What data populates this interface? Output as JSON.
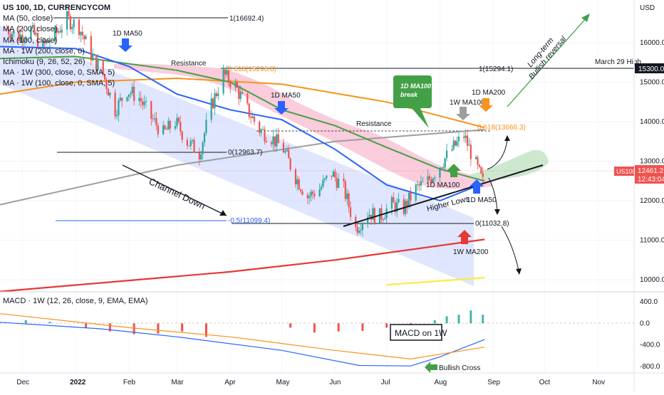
{
  "header": {
    "symbol": "US 100, 1D, CURRENCYCOM",
    "indicators": [
      "MA (50, close)",
      "MA (200, close)",
      "MA (100, close)",
      "MA · 1W (200, close, 0)",
      "Ichimoku (9, 26, 52, 26)",
      "MA · 1W (300, close, 0, SMA, 5)",
      "MA · 1W (100, close, 0, SMA, 5)"
    ],
    "macd_label": "MACD · 1W (12, 26, close, 9, EMA, EMA)"
  },
  "price_axis": {
    "unit": "USD",
    "ticks": [
      16000,
      15000,
      14000,
      13000,
      12000,
      11000,
      10000
    ],
    "tick_labels": [
      "16000.0",
      "15000.0",
      "14000.0",
      "13000.0",
      "12000.0",
      "11000.0",
      "10000.0"
    ],
    "tag_15300": "15300.0",
    "current_symbol": "US100",
    "current_price": "12461.2",
    "countdown": "12:43:04"
  },
  "macd_axis": {
    "ticks": [
      400,
      0,
      -400,
      -800
    ],
    "tick_labels": [
      "400.0",
      "0.0",
      "-400.0",
      "-800.0"
    ]
  },
  "time_axis": [
    "Dec",
    "2022",
    "Feb",
    "Mar",
    "Apr",
    "May",
    "Jun",
    "Jul",
    "Aug",
    "Sep",
    "Oct",
    "Nov"
  ],
  "annotations": {
    "fib_1": "1(16692.4)",
    "fib_0618_top": "0.618(15296.8)",
    "fib_1_right": "1(15294.1)",
    "march_high": "March 29 High",
    "fib_0_left": "0(12963.7)",
    "fib_neg05": "-0.5(11099.4)",
    "fib_0_right": "0(11032.8)",
    "fib_0618_right": "0.618(13666.3)",
    "resistance_1": "Resistance",
    "resistance_2": "Resistance",
    "ma50_1": "1D MA50",
    "ma50_2": "1D MA50",
    "ma50_3": "1D MA50",
    "ma100_1w": "1W MA100",
    "ma200_1d": "1D MA200",
    "ma100_1d": "1D MA100",
    "ma200_1w": "1W MA200",
    "ma100_break_1": "1D MA100",
    "ma100_break_2": "break",
    "channel": "Channel Down",
    "higher_lows": "Higher Lows",
    "reversal_1": "Long-term",
    "reversal_2": "Bullish reversal",
    "macd_box": "MACD on 1W",
    "bullish_cross": "Bullish Cross"
  },
  "colors": {
    "ma50": "#2962ff",
    "ma100": "#43a047",
    "ma200": "#f7931a",
    "ma200_1w": "#e53935",
    "ma300_1w": "#9e9e9e",
    "up": "#26a69a",
    "down": "#ef5350",
    "channel": "#c7d2fe",
    "cloud_bear": "#f8bbd0",
    "cloud_bull": "#c8e6c9",
    "fib_orange": "#f7931a"
  },
  "chart_data": {
    "type": "candlestick",
    "x_range": [
      "2021-11-18",
      "2022-11-22"
    ],
    "y_range": [
      9500,
      17000
    ],
    "price_path": [
      [
        "2021-11-22",
        16350
      ],
      [
        "2021-11-29",
        16150
      ],
      [
        "2021-12-06",
        16300
      ],
      [
        "2021-12-13",
        15900
      ],
      [
        "2021-12-20",
        16200
      ],
      [
        "2021-12-27",
        16600
      ],
      [
        "2022-01-03",
        16400
      ],
      [
        "2022-01-10",
        15700
      ],
      [
        "2022-01-17",
        15200
      ],
      [
        "2022-01-24",
        14300
      ],
      [
        "2022-01-31",
        14800
      ],
      [
        "2022-02-07",
        14600
      ],
      [
        "2022-02-14",
        14100
      ],
      [
        "2022-02-21",
        13700
      ],
      [
        "2022-02-28",
        14000
      ],
      [
        "2022-03-07",
        13500
      ],
      [
        "2022-03-14",
        13200
      ],
      [
        "2022-03-21",
        14400
      ],
      [
        "2022-03-28",
        15200
      ],
      [
        "2022-04-04",
        14900
      ],
      [
        "2022-04-11",
        14300
      ],
      [
        "2022-04-18",
        13800
      ],
      [
        "2022-04-25",
        13600
      ],
      [
        "2022-05-02",
        13300
      ],
      [
        "2022-05-09",
        12600
      ],
      [
        "2022-05-16",
        12100
      ],
      [
        "2022-05-23",
        12300
      ],
      [
        "2022-05-30",
        12700
      ],
      [
        "2022-06-06",
        12300
      ],
      [
        "2022-06-13",
        11300
      ],
      [
        "2022-06-20",
        11700
      ],
      [
        "2022-06-27",
        11600
      ],
      [
        "2022-07-04",
        11900
      ],
      [
        "2022-07-11",
        11800
      ],
      [
        "2022-07-18",
        12300
      ],
      [
        "2022-07-25",
        12500
      ],
      [
        "2022-08-01",
        12900
      ],
      [
        "2022-08-08",
        13300
      ],
      [
        "2022-08-15",
        13650
      ],
      [
        "2022-08-22",
        12900
      ],
      [
        "2022-08-26",
        12461
      ]
    ],
    "moving_averages": {
      "ma50_1d": [
        [
          "2021-11-18",
          15900
        ],
        [
          "2022-01-01",
          15850
        ],
        [
          "2022-02-01",
          15400
        ],
        [
          "2022-03-01",
          14700
        ],
        [
          "2022-04-01",
          14300
        ],
        [
          "2022-05-01",
          14050
        ],
        [
          "2022-06-01",
          13300
        ],
        [
          "2022-07-01",
          12400
        ],
        [
          "2022-08-01",
          12000
        ],
        [
          "2022-08-27",
          12450
        ]
      ],
      "ma100_1d": [
        [
          "2021-11-18",
          15600
        ],
        [
          "2022-01-01",
          15650
        ],
        [
          "2022-03-01",
          15300
        ],
        [
          "2022-04-01",
          15000
        ],
        [
          "2022-05-01",
          14300
        ],
        [
          "2022-06-01",
          13900
        ],
        [
          "2022-07-01",
          13350
        ],
        [
          "2022-08-01",
          12800
        ],
        [
          "2022-08-27",
          12500
        ]
      ],
      "ma200_1d": [
        [
          "2021-11-18",
          14700
        ],
        [
          "2022-01-01",
          15000
        ],
        [
          "2022-03-01",
          15100
        ],
        [
          "2022-05-01",
          14950
        ],
        [
          "2022-07-01",
          14500
        ],
        [
          "2022-08-27",
          13850
        ]
      ],
      "ma300_1w": [
        [
          "2021-11-18",
          11900
        ],
        [
          "2022-03-01",
          12900
        ],
        [
          "2022-06-01",
          13500
        ],
        [
          "2022-08-27",
          13800
        ]
      ],
      "ma200_1w": [
        [
          "2021-11-18",
          9700
        ],
        [
          "2022-04-01",
          10200
        ],
        [
          "2022-06-01",
          10500
        ],
        [
          "2022-08-27",
          11020
        ]
      ],
      "ma100_1w": [
        [
          "2022-07-01",
          9870
        ],
        [
          "2022-08-27",
          10050
        ]
      ]
    },
    "macd": {
      "macd_line": [
        [
          "2021-11-18",
          20
        ],
        [
          "2022-01-15",
          -100
        ],
        [
          "2022-03-01",
          -250
        ],
        [
          "2022-05-01",
          -500
        ],
        [
          "2022-06-15",
          -780
        ],
        [
          "2022-07-15",
          -790
        ],
        [
          "2022-08-01",
          -620
        ],
        [
          "2022-08-27",
          -300
        ]
      ],
      "signal_line": [
        [
          "2021-11-18",
          180
        ],
        [
          "2022-02-01",
          -80
        ],
        [
          "2022-04-01",
          -250
        ],
        [
          "2022-06-01",
          -500
        ],
        [
          "2022-07-15",
          -660
        ],
        [
          "2022-08-27",
          -440
        ]
      ],
      "histogram": [
        [
          "2021-12-03",
          60
        ],
        [
          "2021-12-17",
          30
        ],
        [
          "2022-01-07",
          -80
        ],
        [
          "2022-01-21",
          -150
        ],
        [
          "2022-02-04",
          -200
        ],
        [
          "2022-02-18",
          -190
        ],
        [
          "2022-03-04",
          -150
        ],
        [
          "2022-03-18",
          -250
        ],
        [
          "2022-05-06",
          -80
        ],
        [
          "2022-05-20",
          -170
        ],
        [
          "2022-06-03",
          -150
        ],
        [
          "2022-06-17",
          -140
        ],
        [
          "2022-07-01",
          -80
        ],
        [
          "2022-07-15",
          -40
        ],
        [
          "2022-07-29",
          60
        ],
        [
          "2022-08-05",
          130
        ],
        [
          "2022-08-12",
          160
        ],
        [
          "2022-08-19",
          240
        ],
        [
          "2022-08-26",
          160
        ]
      ]
    }
  }
}
